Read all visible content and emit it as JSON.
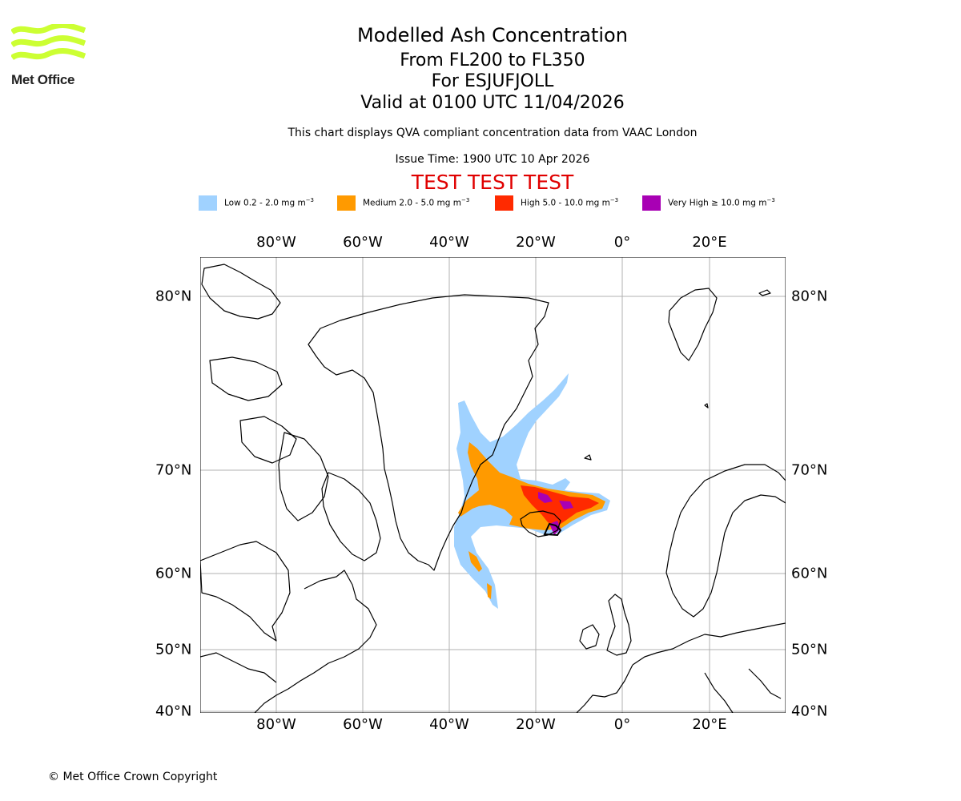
{
  "brand": {
    "name": "Met Office",
    "color": "#ccff33"
  },
  "title": {
    "line1": "Modelled Ash Concentration",
    "line2": "From FL200 to FL350",
    "line3": "For ESJUFJOLL",
    "line4": "Valid at 0100 UTC 11/04/2026"
  },
  "subtitle": "This chart displays QVA compliant concentration data from VAAC London",
  "issue_time": "Issue Time: 1900 UTC 10 Apr 2026",
  "test_banner": {
    "text": "TEST TEST TEST",
    "color": "#e00000"
  },
  "legend": [
    {
      "label": "Low 0.2 - 2.0 mg m",
      "sup": "−3",
      "color": "#a0d2ff"
    },
    {
      "label": "Medium 2.0 - 5.0 mg m",
      "sup": "−3",
      "color": "#ff9a00"
    },
    {
      "label": "High 5.0 - 10.0 mg m",
      "sup": "−3",
      "color": "#ff2a00"
    },
    {
      "label": "Very High  ≥  10.0 mg m",
      "sup": "−3",
      "color": "#a800b4"
    }
  ],
  "map": {
    "lon_labels": [
      "80°W",
      "60°W",
      "40°W",
      "20°W",
      "0°",
      "20°E"
    ],
    "lat_labels": [
      "80°N",
      "70°N",
      "60°N",
      "50°N",
      "40°N"
    ],
    "gridlines": true,
    "volcano": "ESJUFJOLL"
  },
  "copyright": "© Met Office Crown Copyright"
}
